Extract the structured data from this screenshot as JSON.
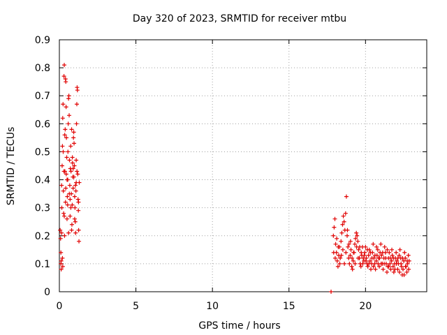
{
  "chart_data": {
    "type": "scatter",
    "title": "Day 320 of 2023, SRMTID for receiver mtbu",
    "xlabel": "GPS time / hours",
    "ylabel": "SRMTID / TECUs",
    "xlim": [
      0,
      24
    ],
    "ylim": [
      0,
      0.9
    ],
    "xticks": [
      0,
      5,
      10,
      15,
      20
    ],
    "yticks": [
      0,
      0.1,
      0.2,
      0.3,
      0.4,
      0.5,
      0.6,
      0.7,
      0.8,
      0.9
    ],
    "grid": true,
    "marker": "+",
    "series": [
      {
        "name": "SRMTID",
        "color": "#e00000",
        "points": [
          [
            0.05,
            0.22
          ],
          [
            0.08,
            0.19
          ],
          [
            0.1,
            0.1
          ],
          [
            0.12,
            0.08
          ],
          [
            0.14,
            0.21
          ],
          [
            0.16,
            0.3
          ],
          [
            0.18,
            0.45
          ],
          [
            0.2,
            0.52
          ],
          [
            0.22,
            0.62
          ],
          [
            0.24,
            0.67
          ],
          [
            0.26,
            0.36
          ],
          [
            0.28,
            0.28
          ],
          [
            0.3,
            0.77
          ],
          [
            0.32,
            0.81
          ],
          [
            0.34,
            0.2
          ],
          [
            0.36,
            0.43
          ],
          [
            0.38,
            0.58
          ],
          [
            0.4,
            0.76
          ],
          [
            0.42,
            0.75
          ],
          [
            0.44,
            0.66
          ],
          [
            0.46,
            0.55
          ],
          [
            0.48,
            0.48
          ],
          [
            0.5,
            0.4
          ],
          [
            0.52,
            0.34
          ],
          [
            0.54,
            0.31
          ],
          [
            0.56,
            0.5
          ],
          [
            0.58,
            0.6
          ],
          [
            0.6,
            0.69
          ],
          [
            0.62,
            0.7
          ],
          [
            0.64,
            0.63
          ],
          [
            0.66,
            0.47
          ],
          [
            0.68,
            0.38
          ],
          [
            0.7,
            0.27
          ],
          [
            0.72,
            0.44
          ],
          [
            0.74,
            0.52
          ],
          [
            0.76,
            0.43
          ],
          [
            0.78,
            0.35
          ],
          [
            0.8,
            0.22
          ],
          [
            0.82,
            0.24
          ],
          [
            0.84,
            0.31
          ],
          [
            0.86,
            0.46
          ],
          [
            0.88,
            0.41
          ],
          [
            0.9,
            0.37
          ],
          [
            0.92,
            0.55
          ],
          [
            0.94,
            0.57
          ],
          [
            0.96,
            0.53
          ],
          [
            0.98,
            0.45
          ],
          [
            1.0,
            0.34
          ],
          [
            1.02,
            0.3
          ],
          [
            1.04,
            0.25
          ],
          [
            1.06,
            0.21
          ],
          [
            1.08,
            0.36
          ],
          [
            1.1,
            0.47
          ],
          [
            1.12,
            0.6
          ],
          [
            1.14,
            0.67
          ],
          [
            1.16,
            0.73
          ],
          [
            1.18,
            0.72
          ],
          [
            1.2,
            0.42
          ],
          [
            1.22,
            0.33
          ],
          [
            1.24,
            0.29
          ],
          [
            1.26,
            0.22
          ],
          [
            1.28,
            0.18
          ],
          [
            1.3,
            0.39
          ],
          [
            0.1,
            0.14
          ],
          [
            0.2,
            0.12
          ],
          [
            0.3,
            0.43
          ],
          [
            0.4,
            0.32
          ],
          [
            0.5,
            0.26
          ],
          [
            0.6,
            0.21
          ],
          [
            0.7,
            0.33
          ],
          [
            0.8,
            0.58
          ],
          [
            0.9,
            0.44
          ],
          [
            1.0,
            0.26
          ],
          [
            1.1,
            0.39
          ],
          [
            0.15,
            0.38
          ],
          [
            0.25,
            0.5
          ],
          [
            0.35,
            0.56
          ],
          [
            0.45,
            0.42
          ],
          [
            0.55,
            0.4
          ],
          [
            0.65,
            0.35
          ],
          [
            0.75,
            0.3
          ],
          [
            0.85,
            0.48
          ],
          [
            0.95,
            0.41
          ],
          [
            1.05,
            0.38
          ],
          [
            1.15,
            0.43
          ],
          [
            1.25,
            0.32
          ],
          [
            0.12,
            0.11
          ],
          [
            0.22,
            0.09
          ],
          [
            0.32,
            0.27
          ],
          [
            0.42,
            0.37
          ],
          [
            17.75,
            0.0
          ],
          [
            17.9,
            0.2
          ],
          [
            17.95,
            0.23
          ],
          [
            18.0,
            0.26
          ],
          [
            18.05,
            0.17
          ],
          [
            18.1,
            0.14
          ],
          [
            18.15,
            0.11
          ],
          [
            18.2,
            0.09
          ],
          [
            18.25,
            0.13
          ],
          [
            18.3,
            0.16
          ],
          [
            18.35,
            0.12
          ],
          [
            18.4,
            0.18
          ],
          [
            18.45,
            0.21
          ],
          [
            18.5,
            0.24
          ],
          [
            18.55,
            0.27
          ],
          [
            18.6,
            0.25
          ],
          [
            18.65,
            0.22
          ],
          [
            18.7,
            0.28
          ],
          [
            18.75,
            0.34
          ],
          [
            18.8,
            0.2
          ],
          [
            18.85,
            0.16
          ],
          [
            18.9,
            0.12
          ],
          [
            18.95,
            0.1
          ],
          [
            19.0,
            0.13
          ],
          [
            19.05,
            0.15
          ],
          [
            19.1,
            0.09
          ],
          [
            19.15,
            0.08
          ],
          [
            19.2,
            0.11
          ],
          [
            19.25,
            0.14
          ],
          [
            19.3,
            0.17
          ],
          [
            19.35,
            0.19
          ],
          [
            19.4,
            0.21
          ],
          [
            19.45,
            0.2
          ],
          [
            19.5,
            0.18
          ],
          [
            19.55,
            0.15
          ],
          [
            19.6,
            0.12
          ],
          [
            19.65,
            0.1
          ],
          [
            19.7,
            0.09
          ],
          [
            19.75,
            0.13
          ],
          [
            19.8,
            0.16
          ],
          [
            19.85,
            0.12
          ],
          [
            19.9,
            0.11
          ],
          [
            19.95,
            0.14
          ],
          [
            20.0,
            0.16
          ],
          [
            20.05,
            0.12
          ],
          [
            20.1,
            0.1
          ],
          [
            20.15,
            0.09
          ],
          [
            20.2,
            0.13
          ],
          [
            20.25,
            0.15
          ],
          [
            20.3,
            0.11
          ],
          [
            20.35,
            0.08
          ],
          [
            20.4,
            0.1
          ],
          [
            20.45,
            0.14
          ],
          [
            20.5,
            0.17
          ],
          [
            20.55,
            0.12
          ],
          [
            20.6,
            0.1
          ],
          [
            20.65,
            0.08
          ],
          [
            20.7,
            0.11
          ],
          [
            20.75,
            0.13
          ],
          [
            20.8,
            0.15
          ],
          [
            20.85,
            0.12
          ],
          [
            20.9,
            0.09
          ],
          [
            20.95,
            0.14
          ],
          [
            21.0,
            0.17
          ],
          [
            21.05,
            0.13
          ],
          [
            21.1,
            0.1
          ],
          [
            21.15,
            0.08
          ],
          [
            21.2,
            0.12
          ],
          [
            21.25,
            0.16
          ],
          [
            21.3,
            0.14
          ],
          [
            21.35,
            0.1
          ],
          [
            21.4,
            0.07
          ],
          [
            21.45,
            0.09
          ],
          [
            21.5,
            0.12
          ],
          [
            21.55,
            0.14
          ],
          [
            21.6,
            0.1
          ],
          [
            21.65,
            0.08
          ],
          [
            21.7,
            0.11
          ],
          [
            21.75,
            0.13
          ],
          [
            21.8,
            0.09
          ],
          [
            21.85,
            0.07
          ],
          [
            21.9,
            0.1
          ],
          [
            21.95,
            0.12
          ],
          [
            22.0,
            0.14
          ],
          [
            22.05,
            0.11
          ],
          [
            22.1,
            0.08
          ],
          [
            22.15,
            0.1
          ],
          [
            22.2,
            0.13
          ],
          [
            22.25,
            0.15
          ],
          [
            22.3,
            0.12
          ],
          [
            22.35,
            0.09
          ],
          [
            22.4,
            0.06
          ],
          [
            22.45,
            0.08
          ],
          [
            22.5,
            0.11
          ],
          [
            22.55,
            0.14
          ],
          [
            22.6,
            0.12
          ],
          [
            22.65,
            0.09
          ],
          [
            22.7,
            0.07
          ],
          [
            22.75,
            0.1
          ],
          [
            22.8,
            0.13
          ],
          [
            22.85,
            0.11
          ],
          [
            17.92,
            0.14
          ],
          [
            18.02,
            0.12
          ],
          [
            18.12,
            0.19
          ],
          [
            18.22,
            0.16
          ],
          [
            18.32,
            0.1
          ],
          [
            18.42,
            0.13
          ],
          [
            18.52,
            0.15
          ],
          [
            18.62,
            0.1
          ],
          [
            18.72,
            0.14
          ],
          [
            18.82,
            0.22
          ],
          [
            18.92,
            0.17
          ],
          [
            19.02,
            0.18
          ],
          [
            19.12,
            0.12
          ],
          [
            19.22,
            0.14
          ],
          [
            19.32,
            0.1
          ],
          [
            19.42,
            0.16
          ],
          [
            19.52,
            0.12
          ],
          [
            19.62,
            0.16
          ],
          [
            19.72,
            0.14
          ],
          [
            19.82,
            0.1
          ],
          [
            19.92,
            0.13
          ],
          [
            20.02,
            0.11
          ],
          [
            20.12,
            0.15
          ],
          [
            20.22,
            0.1
          ],
          [
            20.32,
            0.14
          ],
          [
            20.42,
            0.12
          ],
          [
            20.52,
            0.09
          ],
          [
            20.62,
            0.13
          ],
          [
            20.72,
            0.16
          ],
          [
            20.82,
            0.1
          ],
          [
            20.92,
            0.12
          ],
          [
            21.02,
            0.1
          ],
          [
            21.12,
            0.14
          ],
          [
            21.22,
            0.1
          ],
          [
            21.32,
            0.12
          ],
          [
            21.42,
            0.15
          ],
          [
            21.52,
            0.09
          ],
          [
            21.62,
            0.12
          ],
          [
            21.72,
            0.15
          ],
          [
            21.82,
            0.12
          ],
          [
            21.92,
            0.08
          ],
          [
            22.02,
            0.1
          ],
          [
            22.12,
            0.12
          ],
          [
            22.22,
            0.07
          ],
          [
            22.32,
            0.1
          ],
          [
            22.42,
            0.12
          ],
          [
            22.52,
            0.06
          ],
          [
            22.62,
            0.09
          ],
          [
            22.72,
            0.11
          ],
          [
            22.82,
            0.08
          ]
        ]
      }
    ]
  }
}
